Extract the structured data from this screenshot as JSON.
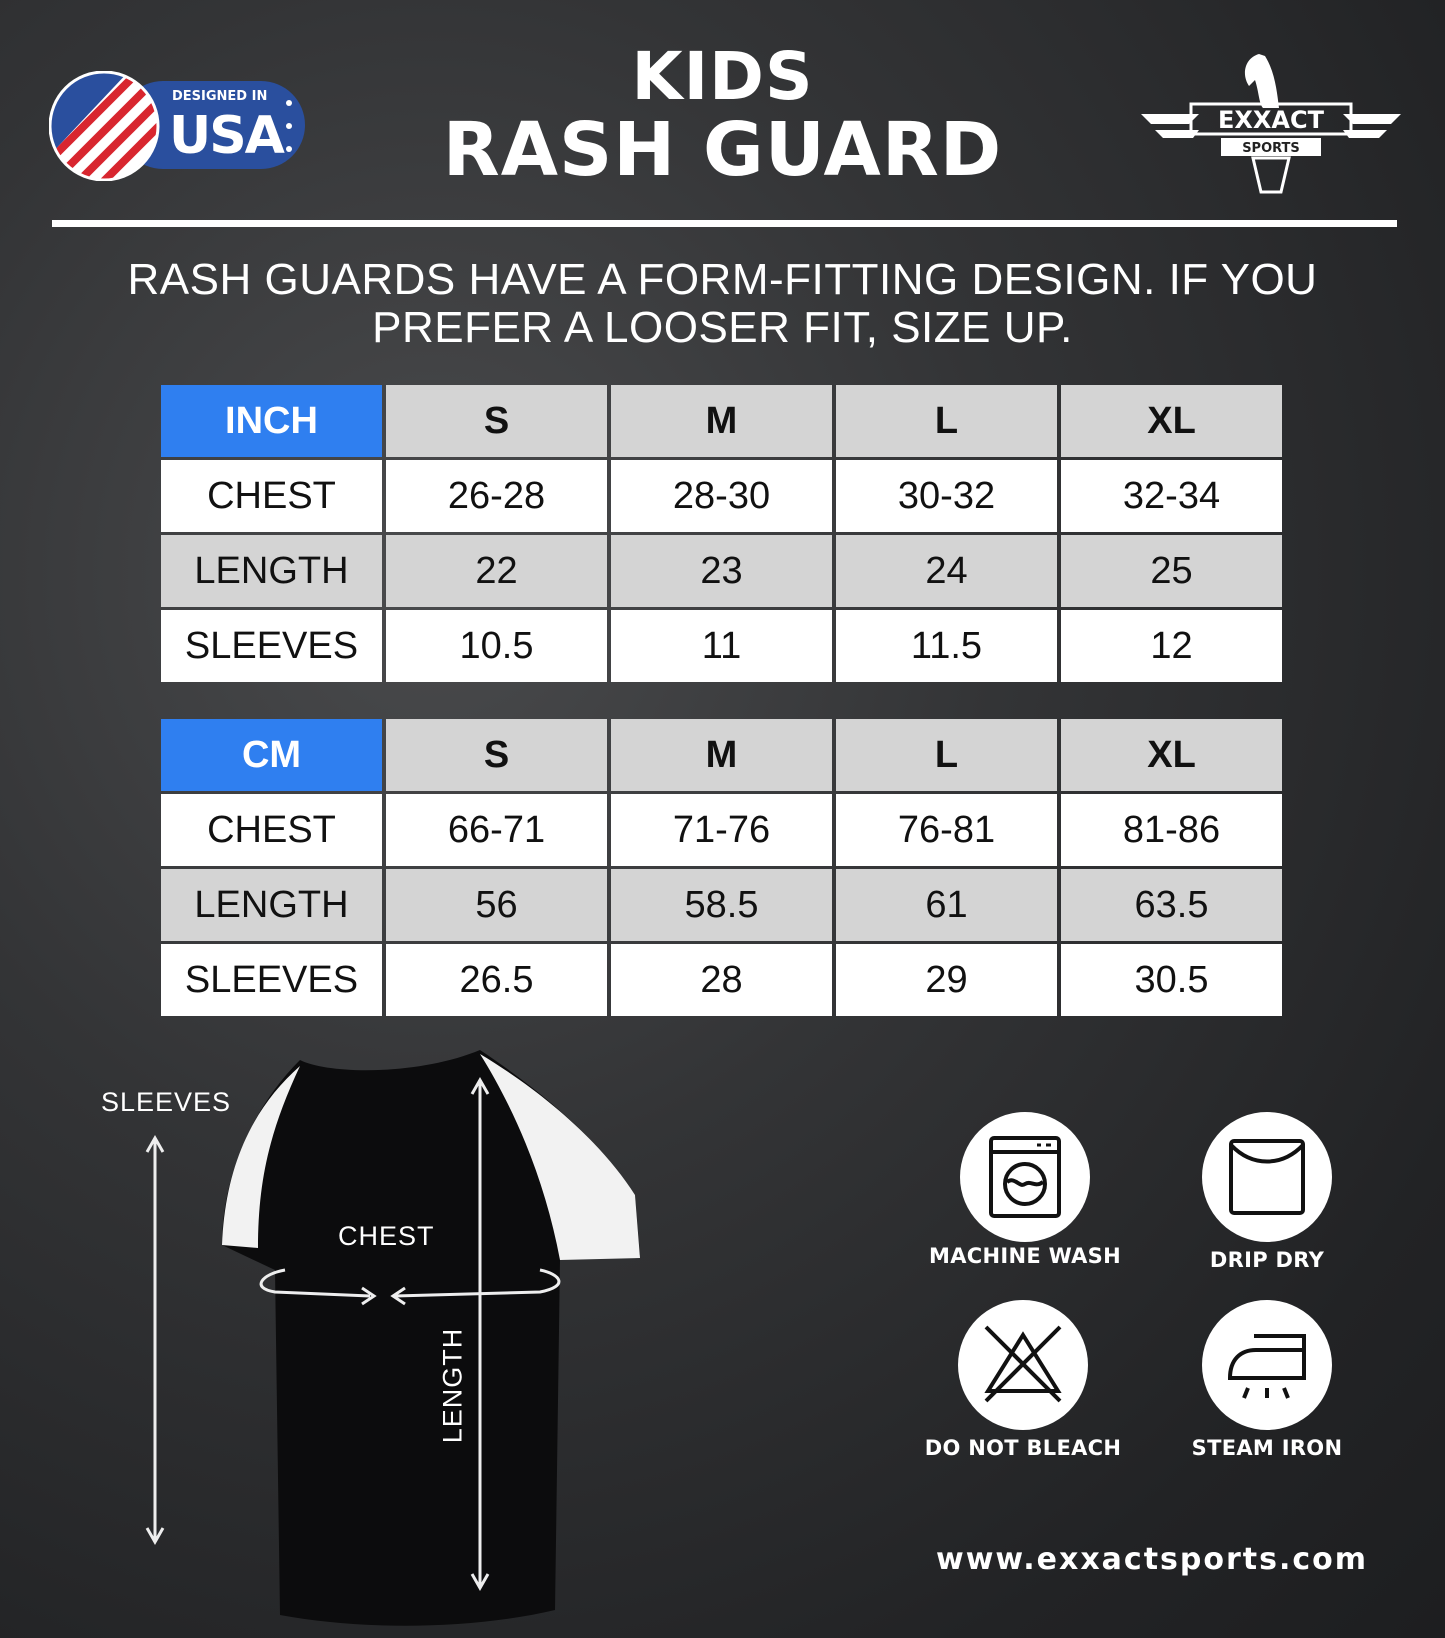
{
  "header": {
    "title_line1": "KIDS",
    "title_line2": "RASH GUARD",
    "badge": {
      "small_text": "DESIGNED IN",
      "big_text": "USA"
    },
    "logo": {
      "brand": "EXXACT",
      "sub": "SPORTS"
    }
  },
  "note": {
    "line1": "RASH GUARDS HAVE A FORM-FITTING DESIGN. IF YOU",
    "line2": "PREFER A LOOSER FIT, SIZE UP."
  },
  "colors": {
    "accent": "#2f7ff0",
    "header_gray": "#d4d4d4",
    "background": "#2a2b2d"
  },
  "tables": [
    {
      "unit": "INCH",
      "sizes": [
        "S",
        "M",
        "L",
        "XL"
      ],
      "rows": [
        {
          "label": "CHEST",
          "values": [
            "26-28",
            "28-30",
            "30-32",
            "32-34"
          ]
        },
        {
          "label": "LENGTH",
          "values": [
            "22",
            "23",
            "24",
            "25"
          ]
        },
        {
          "label": "SLEEVES",
          "values": [
            "10.5",
            "11",
            "11.5",
            "12"
          ]
        }
      ]
    },
    {
      "unit": "CM",
      "sizes": [
        "S",
        "M",
        "L",
        "XL"
      ],
      "rows": [
        {
          "label": "CHEST",
          "values": [
            "66-71",
            "71-76",
            "76-81",
            "81-86"
          ]
        },
        {
          "label": "LENGTH",
          "values": [
            "56",
            "58.5",
            "61",
            "63.5"
          ]
        },
        {
          "label": "SLEEVES",
          "values": [
            "26.5",
            "28",
            "29",
            "30.5"
          ]
        }
      ]
    }
  ],
  "diagram": {
    "sleeves": "SLEEVES",
    "chest": "CHEST",
    "length": "LENGTH"
  },
  "care": [
    {
      "icon": "machine-wash-icon",
      "label": "MACHINE WASH"
    },
    {
      "icon": "drip-dry-icon",
      "label": "DRIP DRY"
    },
    {
      "icon": "do-not-bleach-icon",
      "label": "DO NOT BLEACH"
    },
    {
      "icon": "steam-iron-icon",
      "label": "STEAM IRON"
    }
  ],
  "website": "www.exxactsports.com"
}
